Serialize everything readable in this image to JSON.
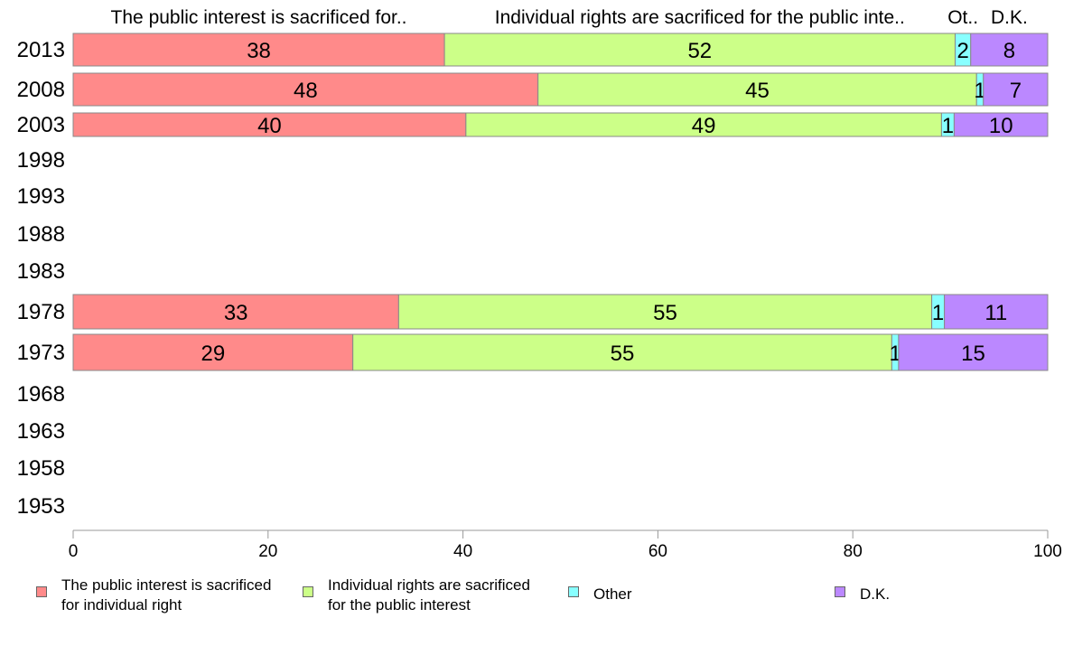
{
  "chart_data": {
    "type": "bar",
    "orientation": "horizontal",
    "stacked": true,
    "categories": [
      "2013",
      "2008",
      "2003",
      "1998",
      "1993",
      "1988",
      "1983",
      "1978",
      "1973",
      "1968",
      "1963",
      "1958",
      "1953"
    ],
    "series": [
      {
        "name": "The public interest is sacrificed for individual right",
        "header": "The public interest is sacrificed for..",
        "color": "#ff8a8a",
        "values": [
          38.1,
          47.7,
          40.3,
          null,
          null,
          null,
          null,
          33.4,
          28.7,
          null,
          null,
          null,
          null
        ],
        "labels": [
          "38",
          "48",
          "40",
          "",
          "",
          "",
          "",
          "33",
          "29",
          "",
          "",
          "",
          ""
        ]
      },
      {
        "name": "Individual rights are sacrificed for the public interest",
        "header": "Individual rights are sacrificed for the public inte..",
        "color": "#ccff88",
        "values": [
          52.4,
          45.0,
          48.8,
          null,
          null,
          null,
          null,
          54.7,
          55.3,
          null,
          null,
          null,
          null
        ],
        "labels": [
          "52",
          "45",
          "49",
          "",
          "",
          "",
          "",
          "55",
          "55",
          "",
          "",
          "",
          ""
        ]
      },
      {
        "name": "Other",
        "header": "Ot..",
        "color": "#88ffff",
        "values": [
          1.6,
          0.7,
          1.3,
          null,
          null,
          null,
          null,
          1.3,
          0.7,
          null,
          null,
          null,
          null
        ],
        "labels": [
          "2",
          "1",
          "1",
          "",
          "",
          "",
          "",
          "1",
          "1",
          "",
          "",
          "",
          ""
        ]
      },
      {
        "name": "D.K.",
        "header": "D.K.",
        "color": "#bb88ff",
        "values": [
          7.9,
          6.6,
          9.6,
          null,
          null,
          null,
          null,
          10.6,
          15.3,
          null,
          null,
          null,
          null
        ],
        "labels": [
          "8",
          "7",
          "10",
          "",
          "",
          "",
          "",
          "11",
          "15",
          "",
          "",
          "",
          ""
        ]
      }
    ],
    "xlim": [
      0,
      100
    ],
    "xticks": [
      "0",
      "20",
      "40",
      "60",
      "80",
      "100"
    ],
    "xlabel": "",
    "ylabel": "",
    "grid": false,
    "legend_position": "bottom"
  },
  "legend": [
    {
      "label": "The public interest is sacrificed\nfor individual right",
      "color": "#ff8a8a"
    },
    {
      "label": "Individual rights are sacrificed\nfor the public interest",
      "color": "#ccff88"
    },
    {
      "label": "Other",
      "color": "#88ffff"
    },
    {
      "label": "D.K.",
      "color": "#bb88ff"
    }
  ]
}
